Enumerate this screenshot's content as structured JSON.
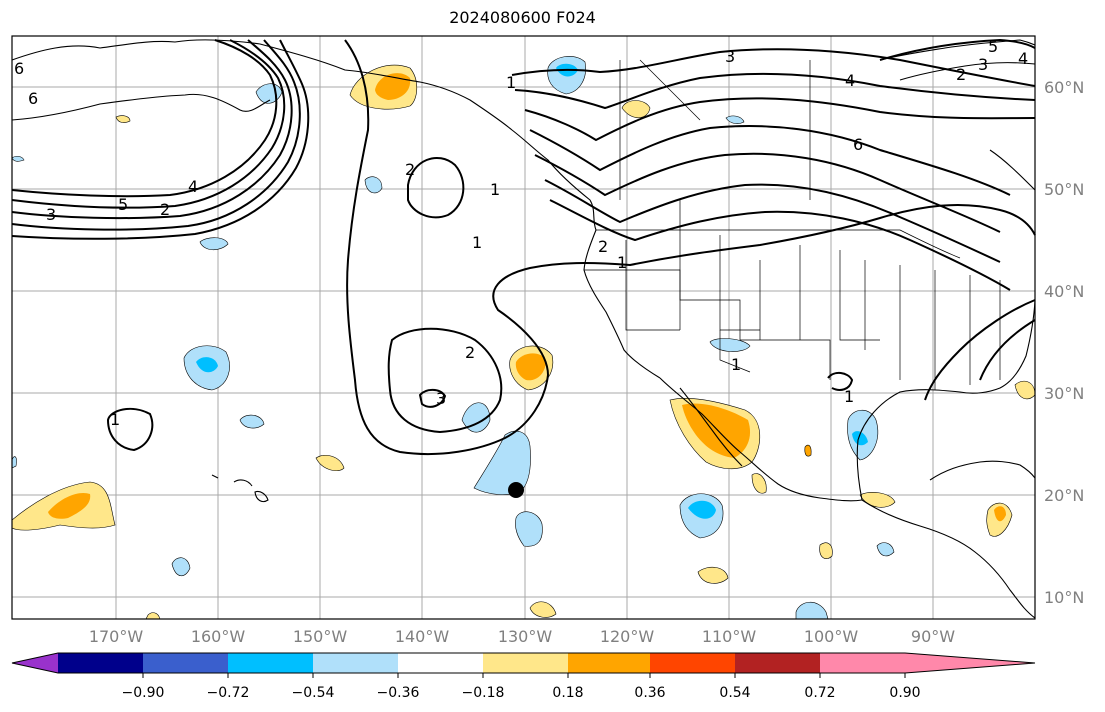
{
  "title": "2024080600 F024",
  "map": {
    "lon_labels": [
      "170°W",
      "160°W",
      "150°W",
      "140°W",
      "130°W",
      "120°W",
      "110°W",
      "100°W",
      "90°W"
    ],
    "lat_labels": [
      "60°N",
      "50°N",
      "40°N",
      "30°N",
      "20°N",
      "10°N"
    ],
    "contour_labels": [
      "6",
      "6",
      "3",
      "5",
      "2",
      "4",
      "1",
      "2",
      "1",
      "1",
      "2",
      "3",
      "1",
      "1",
      "2",
      "1",
      "3",
      "4",
      "2",
      "3",
      "4",
      "5",
      "6",
      "1"
    ]
  },
  "colorbar": {
    "tick_labels": [
      "−0.90",
      "−0.72",
      "−0.54",
      "−0.36",
      "−0.18",
      "0.18",
      "0.36",
      "0.54",
      "0.72",
      "0.90"
    ],
    "colors": [
      "#9932cc",
      "#00008b",
      "#3a5fcd",
      "#00bfff",
      "#b0e0fa",
      "#ffffff",
      "#ffe78a",
      "#ffa500",
      "#ff4500",
      "#b22222",
      "#ff88aa"
    ]
  }
}
